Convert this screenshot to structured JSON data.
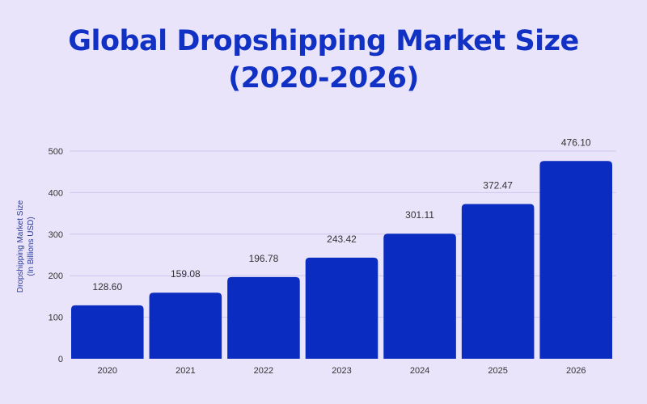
{
  "chart_data": {
    "type": "bar",
    "title": "Global Dropshipping Market Size",
    "subtitle": "(2020-2026)",
    "ylabel": "Dropshipping Market Size",
    "ylabel_sub": "(In Billions USD)",
    "xlabel": "",
    "categories": [
      "2020",
      "2021",
      "2022",
      "2023",
      "2024",
      "2025",
      "2026"
    ],
    "values": [
      128.6,
      159.08,
      196.78,
      243.42,
      301.11,
      372.47,
      476.1
    ],
    "data_labels": [
      "128.60",
      "159.08",
      "196.78",
      "243.42",
      "301.11",
      "372.47",
      "476.10"
    ],
    "ylim": [
      0,
      500
    ],
    "yticks": [
      0,
      100,
      200,
      300,
      400,
      500
    ],
    "grid": true,
    "legend": "none",
    "colors": {
      "bar": "#0a2cc0",
      "title": "#1131c4",
      "background": "#e9e4fa",
      "grid": "#cfc6ee"
    }
  }
}
